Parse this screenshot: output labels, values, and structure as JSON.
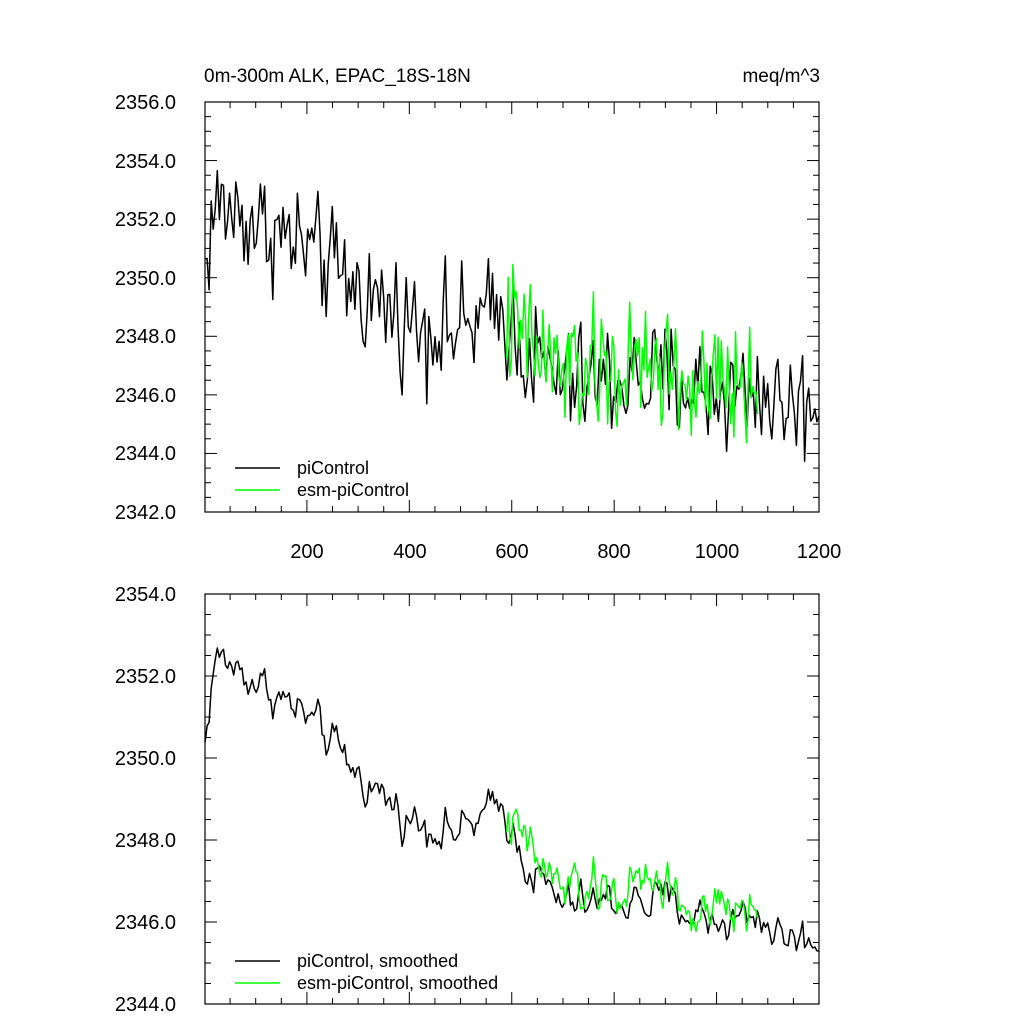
{
  "chart_data": [
    {
      "type": "line",
      "title": "0m-300m ALK, EPAC_18S-18N",
      "units": "meq/m^3",
      "xlabel": "",
      "ylabel": "",
      "xlim": [
        1,
        1200
      ],
      "ylim": [
        2342.0,
        2356.0
      ],
      "xticks": [
        200,
        400,
        600,
        800,
        1000,
        1200
      ],
      "xtick_labels": [
        "200",
        "400",
        "600",
        "800",
        "1000",
        "1200"
      ],
      "yticks": [
        2342.0,
        2344.0,
        2346.0,
        2348.0,
        2350.0,
        2352.0,
        2354.0,
        2356.0
      ],
      "ytick_labels": [
        "2342.0",
        "2344.0",
        "2346.0",
        "2348.0",
        "2350.0",
        "2352.0",
        "2354.0",
        "2356.0"
      ],
      "legend_position": "bottom-left",
      "legend": [
        "piControl",
        "esm-piControl"
      ],
      "series": [
        {
          "name": "piControl",
          "color": "#000000",
          "x_start": 1,
          "x_end": 1200,
          "n_points": 300,
          "trend_x": [
            1,
            20,
            60,
            110,
            200,
            300,
            400,
            500,
            580,
            640,
            700,
            800,
            900,
            1000,
            1080,
            1120,
            1200
          ],
          "trend_y": [
            2350.3,
            2352.5,
            2352.2,
            2351.8,
            2351.0,
            2349.6,
            2348.5,
            2348.2,
            2348.8,
            2347.2,
            2346.4,
            2346.5,
            2346.5,
            2346.0,
            2346.2,
            2345.7,
            2345.7
          ],
          "noise_amplitude": 1.0
        },
        {
          "name": "esm-piControl",
          "color": "#00ff00",
          "x_start": 590,
          "x_end": 1080,
          "n_points": 160,
          "trend_x": [
            590,
            620,
            660,
            700,
            800,
            900,
            960,
            1000,
            1080
          ],
          "trend_y": [
            2348.5,
            2348.0,
            2347.3,
            2346.8,
            2346.7,
            2347.0,
            2346.0,
            2346.2,
            2346.4
          ],
          "noise_amplitude": 1.1
        }
      ]
    },
    {
      "type": "line",
      "title": "",
      "xlabel": "",
      "ylabel": "",
      "xlim": [
        1,
        1200
      ],
      "ylim": [
        2344.0,
        2354.0
      ],
      "xticks": [
        200,
        400,
        600,
        800,
        1000,
        1200
      ],
      "yticks": [
        2344.0,
        2346.0,
        2348.0,
        2350.0,
        2352.0,
        2354.0
      ],
      "ytick_labels": [
        "2344.0",
        "2346.0",
        "2348.0",
        "2350.0",
        "2352.0",
        "2354.0"
      ],
      "legend_position": "bottom-left",
      "legend": [
        "piControl, smoothed",
        "esm-piControl, smoothed"
      ],
      "series": [
        {
          "name": "piControl, smoothed",
          "color": "#000000",
          "x_start": 1,
          "x_end": 1200,
          "n_points": 300,
          "trend_x": [
            1,
            20,
            60,
            110,
            200,
            300,
            400,
            500,
            580,
            640,
            700,
            800,
            900,
            1000,
            1080,
            1120,
            1200
          ],
          "trend_y": [
            2350.3,
            2352.5,
            2352.2,
            2351.8,
            2351.0,
            2349.6,
            2348.5,
            2348.2,
            2348.8,
            2347.2,
            2346.4,
            2346.5,
            2346.5,
            2346.0,
            2346.2,
            2345.7,
            2345.5
          ],
          "noise_amplitude": 0.5
        },
        {
          "name": "esm-piControl, smoothed",
          "color": "#00ff00",
          "x_start": 590,
          "x_end": 1080,
          "n_points": 160,
          "trend_x": [
            590,
            620,
            660,
            700,
            800,
            900,
            960,
            1000,
            1080
          ],
          "trend_y": [
            2348.5,
            2348.0,
            2347.3,
            2346.8,
            2346.7,
            2347.0,
            2346.0,
            2346.2,
            2346.4
          ],
          "noise_amplitude": 0.6
        }
      ]
    }
  ]
}
